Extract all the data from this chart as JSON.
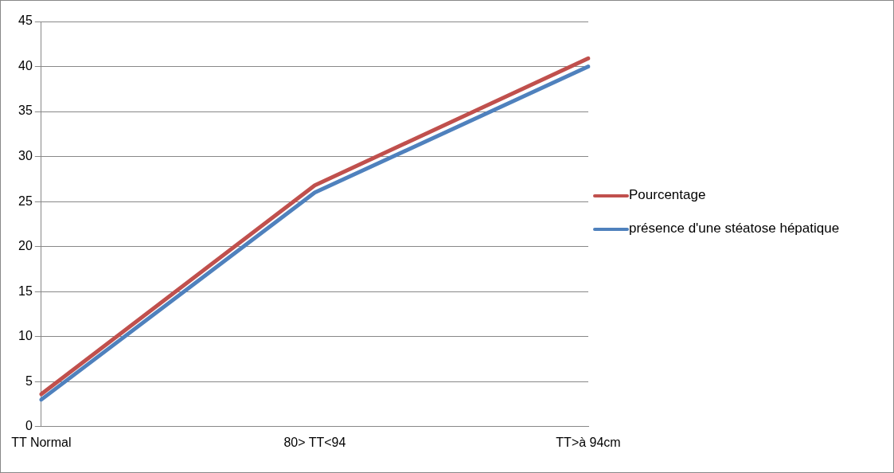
{
  "chart_data": {
    "type": "line",
    "categories": [
      "TT Normal",
      "80> TT<94",
      "TT>à 94cm"
    ],
    "series": [
      {
        "name": "Pourcentage",
        "color": "#c0504d",
        "values": [
          3.6,
          26.8,
          40.9
        ]
      },
      {
        "name": "présence d'une stéatose hépatique",
        "color": "#4f81bd",
        "values": [
          3,
          26,
          40
        ]
      }
    ],
    "ylim": [
      0,
      45
    ],
    "yticks": [
      0,
      5,
      10,
      15,
      20,
      25,
      30,
      35,
      40,
      45
    ],
    "grid": "y",
    "legend": "right",
    "marker": "none",
    "line_style": "solid"
  }
}
